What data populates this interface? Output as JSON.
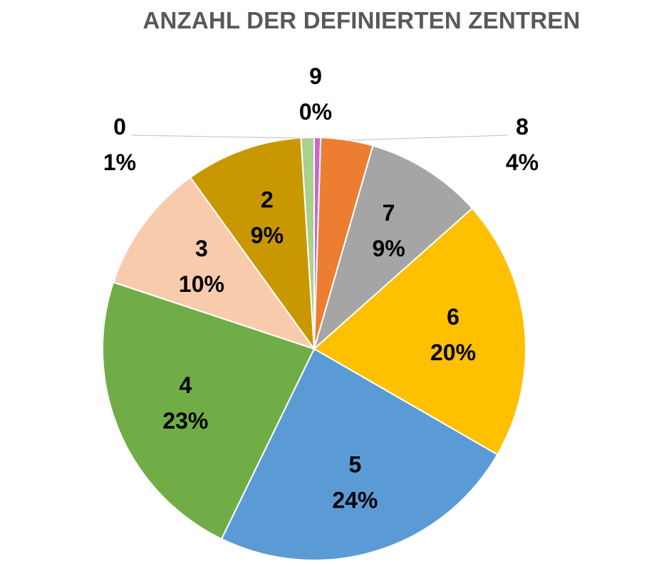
{
  "chart_data": {
    "type": "pie",
    "title": "ANZAHL DER DEFINIERTEN ZENTREN",
    "slices": [
      {
        "category": "9",
        "percent_label": "0%",
        "value": 0.5,
        "color": "#cc66cc"
      },
      {
        "category": "8",
        "percent_label": "4%",
        "value": 4,
        "color": "#ed7d31"
      },
      {
        "category": "7",
        "percent_label": "9%",
        "value": 9,
        "color": "#a5a5a5"
      },
      {
        "category": "6",
        "percent_label": "20%",
        "value": 20,
        "color": "#ffc000"
      },
      {
        "category": "5",
        "percent_label": "24%",
        "value": 24,
        "color": "#5b9bd5"
      },
      {
        "category": "4",
        "percent_label": "23%",
        "value": 23,
        "color": "#70ad47"
      },
      {
        "category": "3",
        "percent_label": "10%",
        "value": 10,
        "color": "#f8cbad"
      },
      {
        "category": "2",
        "percent_label": "9%",
        "value": 9,
        "color": "#c99700"
      },
      {
        "category": "0",
        "percent_label": "1%",
        "value": 1,
        "color": "#a9d18e"
      }
    ]
  }
}
